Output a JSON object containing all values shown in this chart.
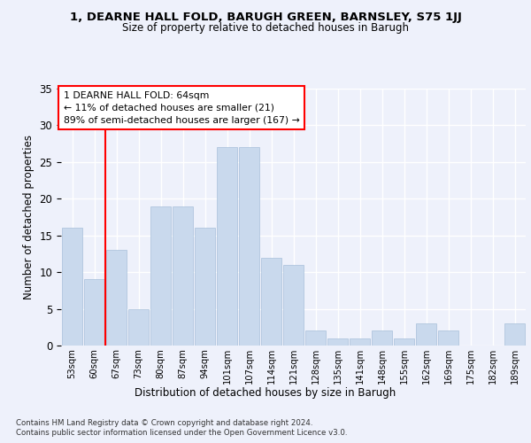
{
  "title1": "1, DEARNE HALL FOLD, BARUGH GREEN, BARNSLEY, S75 1JJ",
  "title2": "Size of property relative to detached houses in Barugh",
  "xlabel": "Distribution of detached houses by size in Barugh",
  "ylabel": "Number of detached properties",
  "categories": [
    "53sqm",
    "60sqm",
    "67sqm",
    "73sqm",
    "80sqm",
    "87sqm",
    "94sqm",
    "101sqm",
    "107sqm",
    "114sqm",
    "121sqm",
    "128sqm",
    "135sqm",
    "141sqm",
    "148sqm",
    "155sqm",
    "162sqm",
    "169sqm",
    "175sqm",
    "182sqm",
    "189sqm"
  ],
  "values": [
    16,
    9,
    13,
    5,
    19,
    19,
    16,
    27,
    27,
    12,
    11,
    2,
    1,
    1,
    2,
    1,
    3,
    2,
    0,
    0,
    3
  ],
  "bar_color": "#c9d9ed",
  "bar_edge_color": "#a8c0da",
  "red_line_x": 1.5,
  "annotation_text": "1 DEARNE HALL FOLD: 64sqm\n← 11% of detached houses are smaller (21)\n89% of semi-detached houses are larger (167) →",
  "footer1": "Contains HM Land Registry data © Crown copyright and database right 2024.",
  "footer2": "Contains public sector information licensed under the Open Government Licence v3.0.",
  "background_color": "#eef1fb",
  "ylim": [
    0,
    35
  ],
  "yticks": [
    0,
    5,
    10,
    15,
    20,
    25,
    30,
    35
  ]
}
